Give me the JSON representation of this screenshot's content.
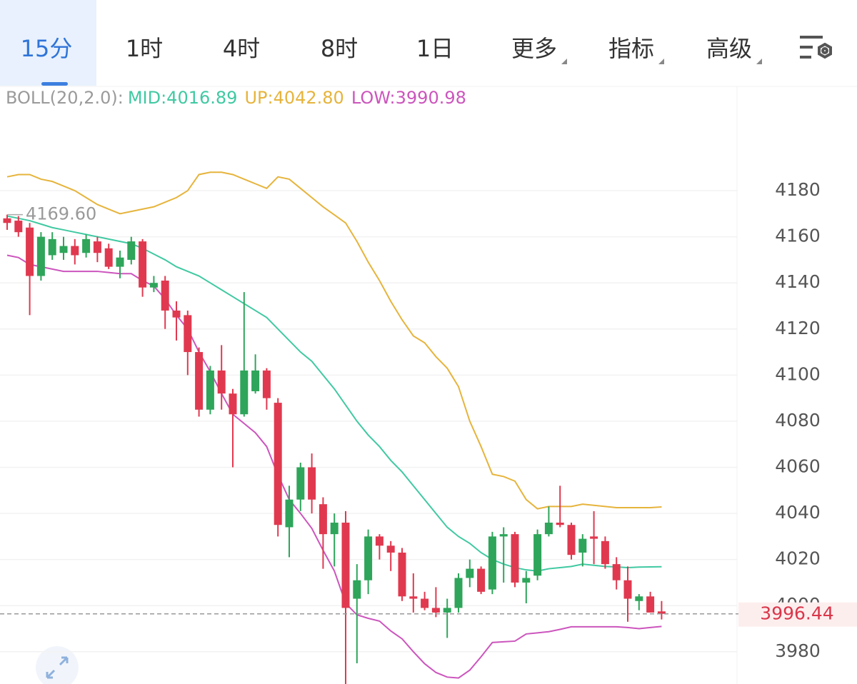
{
  "tabs": [
    "15分",
    "1时",
    "4时",
    "8时",
    "1日",
    "更多",
    "指标",
    "高级"
  ],
  "active_tab": 0,
  "indicator": {
    "name": "BOLL(20,2.0):",
    "mid": "MID:4016.89",
    "up": "UP:4042.80",
    "low": "LOW:3990.98"
  },
  "chart_data": {
    "type": "candlestick",
    "up_color": "#2ea55a",
    "down_color": "#e0394f",
    "ylim": [
      3966,
      4224
    ],
    "yticks": [
      3980,
      4000,
      4020,
      4040,
      4060,
      4080,
      4100,
      4120,
      4140,
      4160,
      4180
    ],
    "grid": true,
    "open": [
      4168,
      4167,
      4164,
      4143,
      4152,
      4153,
      4156,
      4153,
      4158,
      4155,
      4147,
      4150,
      4158,
      4138,
      4141,
      4128,
      4126,
      4110,
      4085,
      4102,
      4092,
      4083,
      4093,
      4102,
      4088,
      4034,
      4046,
      4060,
      4044,
      4031,
      4036,
      4003,
      4011,
      4030,
      4026,
      4023,
      4004,
      4003,
      3999,
      3997,
      3999,
      4012,
      4016,
      4007,
      4030,
      4031,
      4010,
      4013,
      4031,
      4036,
      4035,
      4023,
      4030,
      4028,
      4018,
      4011,
      4002,
      4004,
      3997.5
    ],
    "high": [
      4169.6,
      4169,
      4166,
      4162,
      4162,
      4160,
      4159,
      4161,
      4160,
      4157,
      4154,
      4160,
      4159,
      4143,
      4143,
      4132,
      4128,
      4112,
      4104,
      4113,
      4094,
      4136,
      4109,
      4103,
      4090,
      4052,
      4062,
      4066,
      4047,
      4040,
      4041,
      4018,
      4033,
      4031,
      4028,
      4025,
      4014,
      4006,
      4008,
      4003,
      4014,
      4020,
      4017,
      4032,
      4034,
      4032,
      4015,
      4033,
      4043,
      4052,
      4036,
      4031,
      4041,
      4030,
      4021,
      4017,
      4005,
      4006,
      4002
    ],
    "low": [
      4163,
      4160,
      4126,
      4141,
      4150,
      4150,
      4148,
      4151,
      4149,
      4146,
      4142,
      4148,
      4134,
      4136,
      4120,
      4115,
      4100,
      4082,
      4083,
      4085,
      4060,
      4082,
      4092,
      4085,
      4030,
      4021,
      4041,
      4040,
      4016,
      4017,
      3966,
      3975,
      4005,
      4020,
      4015,
      4002,
      3997,
      3998,
      3995,
      3986,
      3997,
      4008,
      4005,
      4005,
      4010,
      4008,
      4001,
      4011,
      4030,
      4034,
      4020,
      4017,
      4018,
      4016,
      4007,
      3993,
      3998,
      3997,
      3994
    ],
    "close": [
      4166,
      4162,
      4143,
      4160,
      4159,
      4156,
      4152,
      4159,
      4153,
      4147,
      4151,
      4158,
      4138,
      4140,
      4128,
      4125,
      4110,
      4085,
      4102,
      4092,
      4083,
      4102,
      4102,
      4090,
      4035,
      4046,
      4060,
      4046,
      4031,
      4036,
      3999,
      4011,
      4030,
      4026,
      4023,
      4004,
      4003,
      3999,
      3997,
      3999,
      4012,
      4016,
      4006,
      4030,
      4031,
      4010,
      4012,
      4031,
      4036,
      4035,
      4022,
      4029,
      4029,
      4018,
      4011,
      4003,
      4004,
      3997,
      3996.44
    ],
    "overlays": [
      {
        "color": "#e6b43c",
        "values": [
          4186,
          4187,
          4187,
          4185,
          4184,
          4182,
          4180,
          4177,
          4174,
          4172,
          4170,
          4171,
          4172,
          4173,
          4175,
          4177,
          4180,
          4187,
          4188,
          4188,
          4187,
          4185,
          4183,
          4181,
          4186,
          4185,
          4181,
          4177,
          4173,
          4169.5,
          4166,
          4158,
          4149,
          4141,
          4132,
          4124,
          4117,
          4114,
          4108,
          4103,
          4095,
          4080,
          4069,
          4057,
          4056,
          4054,
          4046,
          4042,
          4043,
          4043,
          4043,
          4044,
          4043.5,
          4043,
          4042.5,
          4042.5,
          4042.5,
          4042.5,
          4042.8
        ]
      },
      {
        "color": "#40c9a2",
        "values": [
          4169,
          4168,
          4167,
          4165.5,
          4164,
          4163,
          4162,
          4161,
          4160,
          4159,
          4158,
          4157,
          4155,
          4152.5,
          4150,
          4147,
          4145,
          4143,
          4140,
          4137,
          4134,
          4131,
          4128,
          4125,
          4120,
          4115,
          4110,
          4106,
          4100,
          4094,
          4087,
          4080,
          4074,
          4069,
          4063,
          4058,
          4052,
          4046,
          4040,
          4034,
          4030,
          4027,
          4023,
          4020,
          4018,
          4016.5,
          4015.5,
          4015,
          4016,
          4016.5,
          4017,
          4018,
          4017.5,
          4017,
          4016.8,
          4016.5,
          4016.7,
          4016.8,
          4016.89
        ]
      },
      {
        "color": "#cc55bd",
        "values": [
          4152,
          4151,
          4148,
          4147,
          4146,
          4145,
          4145,
          4145,
          4145,
          4144.5,
          4144,
          4144,
          4141,
          4138.6,
          4133,
          4126,
          4120,
          4110,
          4101.5,
          4092,
          4083,
          4079,
          4075,
          4069,
          4056.7,
          4046,
          4040,
          4033.5,
          4024,
          4015,
          4001,
          3996,
          3994.5,
          3993.3,
          3989,
          3985.6,
          3980,
          3974.8,
          3971,
          3969,
          3968.6,
          3972,
          3977.8,
          3984,
          3984.3,
          3984.6,
          3987.7,
          3988.2,
          3988.7,
          3989.7,
          3990.8,
          3990.8,
          3990.8,
          3990.8,
          3990.8,
          3990.5,
          3990,
          3990.5,
          3990.98
        ]
      }
    ],
    "max_label": {
      "value": 4169.6,
      "label": "4169.60"
    },
    "last_price": {
      "value": 3996.44,
      "label": "3996.44"
    }
  }
}
